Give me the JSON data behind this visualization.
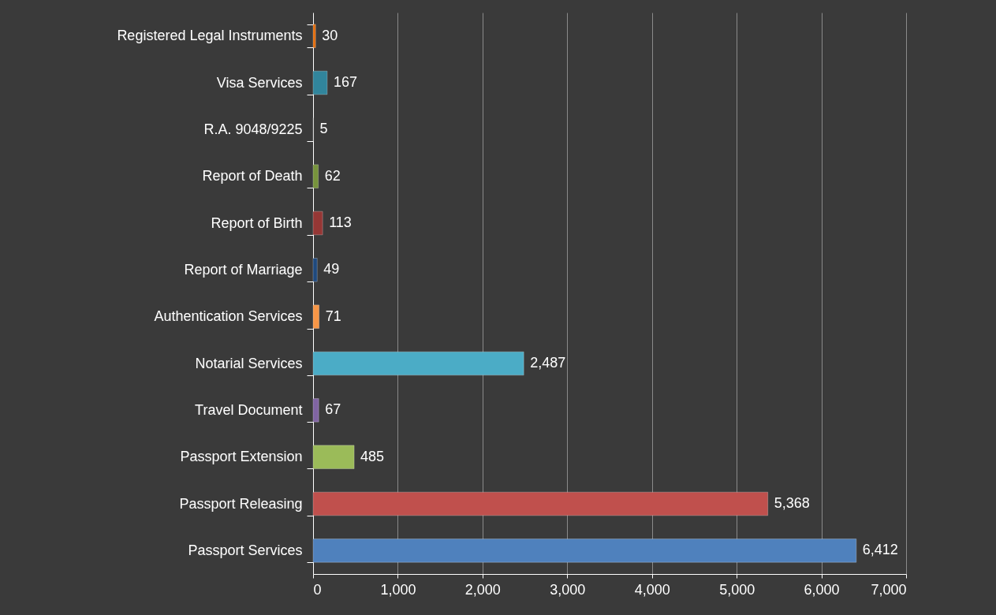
{
  "chart_data": {
    "type": "bar",
    "orientation": "horizontal",
    "categories": [
      "Registered Legal Instruments",
      "Visa Services",
      "R.A. 9048/9225",
      "Report of Death",
      "Report of Birth",
      "Report of Marriage",
      "Authentication Services",
      "Notarial Services",
      "Travel Document",
      "Passport Extension",
      "Passport Releasing",
      "Passport Services"
    ],
    "values": [
      30,
      167,
      5,
      62,
      113,
      49,
      71,
      2487,
      67,
      485,
      5368,
      6412
    ],
    "value_labels": [
      "30",
      "167",
      "5",
      "62",
      "113",
      "49",
      "71",
      "2,487",
      "67",
      "485",
      "5,368",
      "6,412"
    ],
    "colors": [
      "#e46c0a",
      "#31859c",
      "#8c8c8c",
      "#77933c",
      "#953735",
      "#1f497d",
      "#f79646",
      "#4bacc6",
      "#8064a2",
      "#9bbb59",
      "#c0504d",
      "#4f81bd"
    ],
    "xlim": [
      0,
      7000
    ],
    "xticks": [
      0,
      {
        "value": 1000,
        "label": "1,000"
      },
      {
        "value": 2000,
        "label": "2,000"
      },
      {
        "value": 3000,
        "label": "3,000"
      },
      {
        "value": 4000,
        "label": "4,000"
      },
      {
        "value": 5000,
        "label": "5,000"
      },
      {
        "value": 6000,
        "label": "6,000"
      },
      {
        "value": 7000,
        "label": "7,000"
      }
    ],
    "grid": "x"
  }
}
